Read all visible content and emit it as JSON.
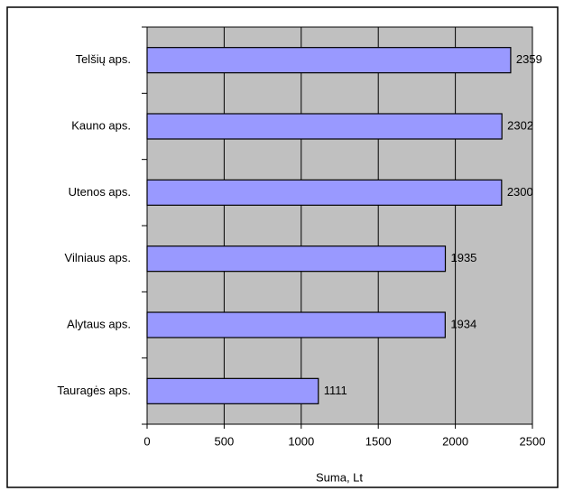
{
  "chart_data": {
    "type": "bar",
    "orientation": "horizontal",
    "categories": [
      "Telšių aps.",
      "Kauno aps.",
      "Utenos aps.",
      "Vilniaus aps.",
      "Alytaus aps.",
      "Tauragės aps."
    ],
    "values": [
      2359,
      2302,
      2300,
      1935,
      1934,
      1111
    ],
    "color": "#9999ff",
    "x_label": "Suma, Lt",
    "xlim": [
      0,
      2500
    ],
    "xticks": [
      0,
      500,
      1000,
      1500,
      2000,
      2500
    ],
    "grid": true
  }
}
